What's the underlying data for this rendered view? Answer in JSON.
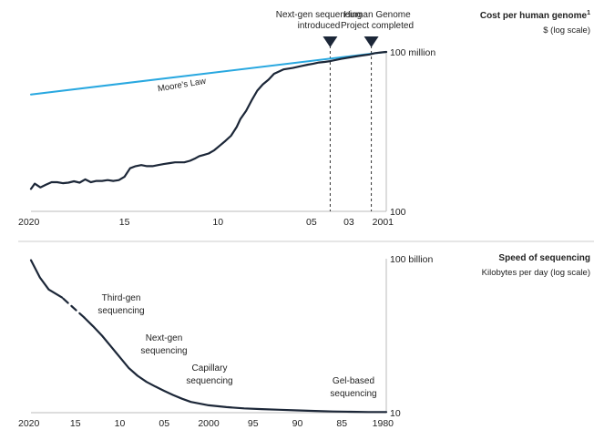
{
  "chart_data": [
    {
      "type": "line",
      "title": "Cost per human genome",
      "title_footnote": "1",
      "subtitle": "$ (log scale)",
      "x_axis": {
        "direction": "reversed",
        "range": [
          2001,
          2020
        ],
        "ticks": [
          {
            "x": 2001,
            "label": "2001"
          },
          {
            "x": 2003,
            "label": "03"
          },
          {
            "x": 2005,
            "label": "05"
          },
          {
            "x": 2010,
            "label": "10"
          },
          {
            "x": 2015,
            "label": "15"
          },
          {
            "x": 2020,
            "label": "2020"
          }
        ]
      },
      "y_axis": {
        "scale": "log",
        "range": [
          100,
          100000000
        ],
        "ticks": [
          {
            "y": 100,
            "label": "100"
          },
          {
            "y": 100000000,
            "label": "100 million"
          }
        ]
      },
      "series": [
        {
          "name": "Moore's Law",
          "color": "#29a8e0",
          "x": [
            2001,
            2020
          ],
          "y": [
            100000000,
            2500000
          ]
        },
        {
          "color": "#1c2738",
          "x": [
            2001,
            2001.3,
            2001.6,
            2001.9,
            2002.2,
            2002.5,
            2002.8,
            2003.1,
            2003.4,
            2003.7,
            2004.0,
            2004.3,
            2004.6,
            2004.9,
            2005.2,
            2005.5,
            2006.0,
            2006.5,
            2007.0,
            2007.3,
            2007.6,
            2007.9,
            2008.2,
            2008.5,
            2008.8,
            2009.0,
            2009.3,
            2009.6,
            2009.9,
            2010.2,
            2010.5,
            2010.8,
            2011.0,
            2011.2,
            2011.5,
            2011.8,
            2012.0,
            2012.3,
            2012.6,
            2012.9,
            2013.2,
            2013.5,
            2013.8,
            2014.1,
            2014.4,
            2014.7,
            2015.0,
            2015.3,
            2015.6,
            2015.9,
            2016.2,
            2016.5,
            2016.8,
            2017.1,
            2017.4,
            2017.7,
            2018.0,
            2018.3,
            2018.6,
            2018.9,
            2019.2,
            2019.5,
            2019.8,
            2020.0
          ],
          "y": [
            100000000,
            95000000,
            90000000,
            80000000,
            75000000,
            70000000,
            65000000,
            60000000,
            55000000,
            50000000,
            45000000,
            42000000,
            40000000,
            36000000,
            33000000,
            30000000,
            25000000,
            22000000,
            15000000,
            9000000,
            6000000,
            3500000,
            1500000,
            600000,
            300000,
            150000,
            70000,
            45000,
            30000,
            20000,
            15000,
            13000,
            12000,
            10000,
            8000,
            7000,
            7000,
            7000,
            6500,
            6000,
            5500,
            5000,
            5000,
            5500,
            5000,
            4200,
            2000,
            1500,
            1400,
            1500,
            1400,
            1400,
            1250,
            1600,
            1200,
            1350,
            1200,
            1150,
            1250,
            1250,
            1000,
            800,
            1100,
            700
          ]
        }
      ],
      "annotations": [
        {
          "x": 2001.8,
          "label": "Human Genome Project completed",
          "lines": [
            "Human Genome",
            "Project completed"
          ]
        },
        {
          "x": 2004,
          "label": "Next-gen sequencing introduced",
          "lines": [
            "Next-gen sequencing",
            "introduced"
          ]
        }
      ],
      "grid": false
    },
    {
      "type": "line",
      "title": "Speed of sequencing",
      "subtitle": "Kilobytes per day (log scale)",
      "x_axis": {
        "direction": "reversed",
        "range": [
          1980,
          2020
        ],
        "ticks": [
          {
            "x": 1980,
            "label": "1980"
          },
          {
            "x": 1985,
            "label": "85"
          },
          {
            "x": 1990,
            "label": "90"
          },
          {
            "x": 1995,
            "label": "95"
          },
          {
            "x": 2000,
            "label": "2000"
          },
          {
            "x": 2005,
            "label": "05"
          },
          {
            "x": 2010,
            "label": "10"
          },
          {
            "x": 2015,
            "label": "15"
          },
          {
            "x": 2020,
            "label": "2020"
          }
        ]
      },
      "y_axis": {
        "scale": "log",
        "range": [
          10,
          100000000000
        ],
        "ticks": [
          {
            "y": 10,
            "label": "10"
          },
          {
            "y": 100000000000,
            "label": "100 billion"
          }
        ]
      },
      "series": [
        {
          "color": "#1c2738",
          "x": [
            1980,
            1982,
            1984,
            1986,
            1988,
            1990,
            1992,
            1994,
            1996,
            1998,
            2000,
            2002,
            2003,
            2004,
            2005,
            2006,
            2007,
            2008,
            2009,
            2010,
            2011,
            2012,
            2013,
            2014
          ],
          "y": [
            11,
            11,
            11.5,
            12,
            13,
            14,
            15.5,
            17,
            19,
            23,
            30,
            50,
            80,
            140,
            260,
            500,
            1000,
            2500,
            8000,
            40000,
            200000,
            1000000,
            4000000,
            15000000
          ]
        },
        {
          "color": "#1c2738",
          "x": [
            2014,
            2016.5
          ],
          "y": [
            15000000,
            300000000
          ],
          "dashed": true
        },
        {
          "color": "#1c2738",
          "x": [
            2016.5,
            2018,
            2019,
            2020
          ],
          "y": [
            300000000,
            1000000000,
            6000000000,
            80000000000
          ]
        }
      ],
      "annotations": [
        {
          "label": "Gel-based sequencing",
          "lines": [
            "Gel-based",
            "sequencing"
          ]
        },
        {
          "label": "Capillary sequencing",
          "lines": [
            "Capillary",
            "sequencing"
          ]
        },
        {
          "label": "Next-gen sequencing",
          "lines": [
            "Next-gen",
            "sequencing"
          ]
        },
        {
          "label": "Third-gen sequencing",
          "lines": [
            "Third-gen",
            "sequencing"
          ]
        }
      ],
      "grid": false
    }
  ]
}
